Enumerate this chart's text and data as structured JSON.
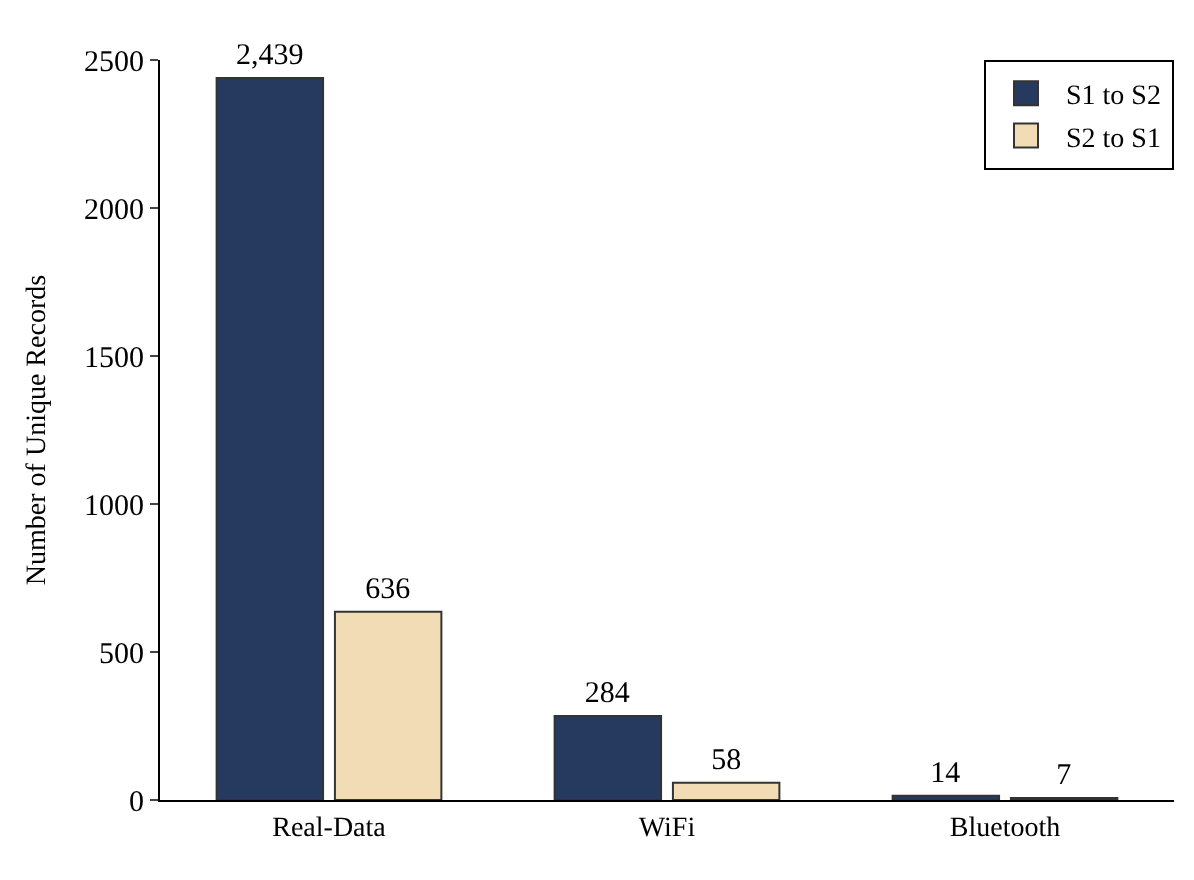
{
  "chart_data": {
    "type": "bar",
    "ylabel": "Number of Unique Records",
    "categories": [
      "Real-Data",
      "WiFi",
      "Bluetooth"
    ],
    "series": [
      {
        "name": "S1 to S2",
        "color": "#263a60",
        "values": [
          2439,
          284,
          14
        ],
        "value_labels": [
          "2,439",
          "284",
          "14"
        ]
      },
      {
        "name": "S2 to S1",
        "color": "#f2dcb5",
        "values": [
          636,
          58,
          7
        ],
        "value_labels": [
          "636",
          "58",
          "7"
        ]
      }
    ],
    "ylim": [
      0,
      2500
    ],
    "yticks": [
      0,
      500,
      1000,
      1500,
      2000,
      2500
    ],
    "legend": "top right"
  }
}
